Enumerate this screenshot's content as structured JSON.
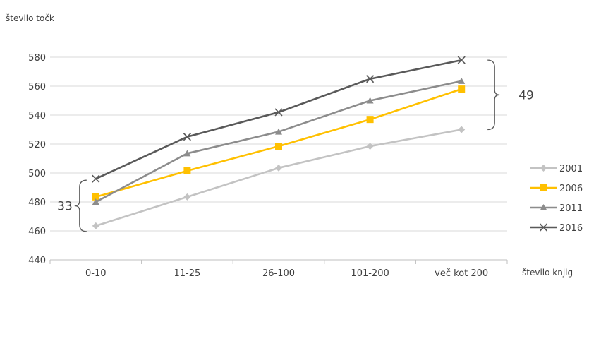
{
  "chart_data": {
    "type": "line",
    "title": "",
    "ylabel": "število točk",
    "xlabel": "število knjig",
    "categories": [
      "0-10",
      "11-25",
      "26-100",
      "101-200",
      "več kot 200"
    ],
    "ylim": [
      440,
      580
    ],
    "yticks": [
      440,
      460,
      480,
      500,
      520,
      540,
      560,
      580
    ],
    "grid": true,
    "legend_position": "right",
    "series": [
      {
        "name": "2001",
        "marker": "diamond",
        "color": "#c3c3c3",
        "values": [
          463.5,
          483.5,
          503.5,
          518.5,
          530
        ]
      },
      {
        "name": "2006",
        "marker": "square",
        "color": "#ffc000",
        "values": [
          483.5,
          501.5,
          518.5,
          537,
          558
        ]
      },
      {
        "name": "2011",
        "marker": "triangle",
        "color": "#8c8c8c",
        "values": [
          480,
          513.5,
          528.5,
          550,
          563.5
        ]
      },
      {
        "name": "2016",
        "marker": "cross",
        "color": "#595959",
        "values": [
          496,
          525,
          542,
          565,
          578
        ]
      }
    ],
    "annotations": [
      {
        "text": "33",
        "range": [
          463.5,
          496
        ],
        "category": "0-10",
        "side": "left"
      },
      {
        "text": "49",
        "range": [
          530,
          578
        ],
        "category": "več kot 200",
        "side": "right"
      }
    ]
  }
}
